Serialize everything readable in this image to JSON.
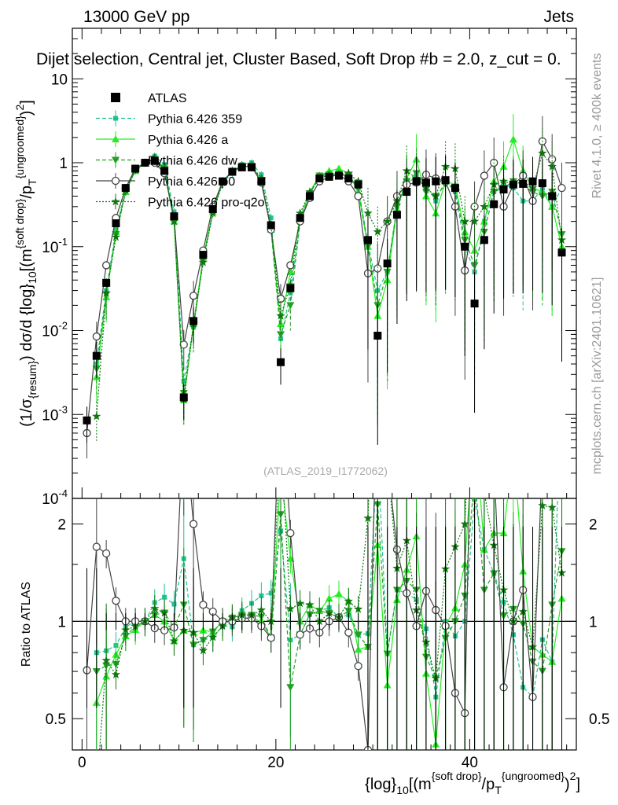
{
  "header": {
    "energy_label": "13000 GeV pp",
    "process_label": "Jets",
    "subtitle": "Dijet selection, Central jet, Cluster Based, Soft Drop #b = 2.0, z_cut = 0.",
    "watermark": "(ATLAS_2019_I1772062)",
    "right_label_top": "Rivet 4.1.0, ≥ 400k events",
    "right_label_bottom": "mcplots.cern.ch [arXiv:2401.10621]"
  },
  "axes": {
    "main_ylabel": "(1/σ_{resum}) dσ/d {log}_{10}[(m^{soft drop}/p_T^{ungroomed})^{2}]",
    "ratio_ylabel": "Ratio to ATLAS",
    "xlabel": "{log}_{10}[(m^{soft drop}/p_T^{ungroomed})^{2}]",
    "x_ticks": [
      "0",
      "20",
      "40"
    ],
    "main_y_ticks": [
      "10^-4",
      "10^-3",
      "10^-2",
      "10^-1",
      "1",
      "10"
    ],
    "ratio_y_ticks": [
      "0.5",
      "1",
      "2"
    ]
  },
  "legend": [
    {
      "name": "ATLAS",
      "color": "#000000",
      "marker": "square",
      "line": "none"
    },
    {
      "name": "Pythia 6.426 359",
      "color": "#1fc090",
      "marker": "square-small",
      "line": "dashed"
    },
    {
      "name": "Pythia 6.426 a",
      "color": "#22ee22",
      "marker": "triangle-up",
      "line": "solid"
    },
    {
      "name": "Pythia 6.426 dw",
      "color": "#22a022",
      "marker": "triangle-down",
      "line": "dashed"
    },
    {
      "name": "Pythia 6.426 p0",
      "color": "#444444",
      "marker": "open-circle",
      "line": "solid"
    },
    {
      "name": "Pythia 6.426 pro-q2o",
      "color": "#117711",
      "marker": "star",
      "line": "dotted"
    }
  ],
  "chart_data": {
    "type": "line",
    "title": "Dijet selection, Central jet, Cluster Based, Soft Drop #b = 2.0, z_cut = 0.",
    "xlabel": "{log}_{10}[(m^{soft drop}/p_T^{ungroomed})^{2}]",
    "ylabel": "(1/σ_{resum}) dσ/d {log}_{10}[(m^{soft drop}/p_T^{ungroomed})^{2}]",
    "ratio_ylabel": "Ratio to ATLAS",
    "xlim": [
      -1,
      51
    ],
    "ylim": [
      0.0001,
      40
    ],
    "ratio_ylim": [
      0.4,
      2.4
    ],
    "yscale": "log",
    "x": [
      0.5,
      1.5,
      2.5,
      3.5,
      4.5,
      5.5,
      6.5,
      7.5,
      8.5,
      9.5,
      10.5,
      11.5,
      12.5,
      13.5,
      14.5,
      15.5,
      16.5,
      17.5,
      18.5,
      19.5,
      20.5,
      21.5,
      22.5,
      23.5,
      24.5,
      25.5,
      26.5,
      27.5,
      28.5,
      29.5,
      30.5,
      31.5,
      32.5,
      33.5,
      34.5,
      35.5,
      36.5,
      37.5,
      38.5,
      39.5,
      40.5,
      41.5,
      42.5,
      43.5,
      44.5,
      45.5,
      46.5,
      47.5,
      48.5,
      49.5
    ],
    "series": [
      {
        "name": "ATLAS",
        "values": [
          0.00085,
          0.005,
          0.037,
          0.19,
          0.5,
          0.85,
          1.0,
          1.05,
          0.8,
          0.23,
          0.0016,
          0.013,
          0.08,
          0.28,
          0.6,
          0.78,
          0.88,
          0.88,
          0.6,
          0.18,
          0.0042,
          0.032,
          0.22,
          0.4,
          0.65,
          0.68,
          0.7,
          0.65,
          0.55,
          0.12,
          0.0087,
          0.063,
          0.24,
          0.45,
          0.6,
          0.58,
          0.6,
          0.62,
          0.5,
          0.1,
          0.021,
          0.12,
          0.32,
          0.48,
          0.55,
          0.56,
          0.6,
          0.57,
          0.4,
          0.085
        ]
      },
      {
        "name": "Pythia 6.426 359",
        "values": [
          null,
          0.004,
          0.03,
          0.16,
          0.48,
          0.85,
          1.0,
          1.2,
          0.95,
          0.26,
          0.0025,
          0.011,
          0.07,
          0.25,
          0.58,
          0.75,
          0.95,
          1.0,
          0.72,
          0.22,
          0.008,
          0.028,
          0.2,
          0.42,
          0.7,
          0.75,
          0.72,
          0.68,
          0.5,
          0.11,
          0.03,
          0.05,
          0.3,
          0.55,
          0.7,
          0.55,
          0.35,
          0.62,
          0.45,
          0.1,
          0.05,
          0.2,
          0.45,
          0.55,
          0.5,
          0.35,
          0.35,
          0.5,
          0.3,
          0.5
        ]
      },
      {
        "name": "Pythia 6.426 a",
        "values": [
          null,
          0.0028,
          0.025,
          0.15,
          0.45,
          0.8,
          1.0,
          1.1,
          0.8,
          0.2,
          0.0015,
          0.012,
          0.075,
          0.26,
          0.6,
          0.78,
          0.9,
          0.9,
          0.6,
          0.16,
          0.012,
          0.05,
          0.22,
          0.45,
          0.7,
          0.8,
          0.85,
          0.75,
          0.45,
          0.1,
          0.015,
          0.04,
          0.28,
          0.65,
          1.1,
          0.4,
          0.25,
          0.6,
          0.55,
          0.15,
          0.09,
          0.2,
          0.6,
          0.9,
          1.9,
          0.8,
          0.5,
          0.45,
          0.3,
          0.1
        ]
      },
      {
        "name": "Pythia 6.426 dw",
        "values": [
          null,
          0.0035,
          0.027,
          0.14,
          0.45,
          0.82,
          1.0,
          1.1,
          0.85,
          0.22,
          0.0018,
          0.011,
          0.07,
          0.26,
          0.6,
          0.8,
          0.92,
          0.92,
          0.62,
          0.16,
          0.009,
          0.02,
          0.2,
          0.42,
          0.7,
          0.72,
          0.72,
          0.7,
          0.5,
          0.1,
          0.02,
          0.05,
          0.3,
          0.6,
          0.75,
          0.45,
          0.4,
          0.55,
          0.5,
          0.12,
          0.06,
          0.15,
          0.45,
          0.5,
          0.6,
          0.55,
          0.45,
          0.4,
          0.45,
          0.14
        ]
      },
      {
        "name": "Pythia 6.426 p0",
        "values": [
          0.0006,
          0.0085,
          0.06,
          0.22,
          0.5,
          0.85,
          1.0,
          1.0,
          0.75,
          0.22,
          0.0068,
          0.026,
          0.09,
          0.3,
          0.6,
          0.78,
          0.9,
          0.9,
          0.58,
          0.16,
          0.024,
          0.06,
          0.2,
          0.38,
          0.6,
          0.68,
          0.72,
          0.6,
          0.4,
          0.048,
          0.055,
          0.2,
          0.4,
          0.55,
          0.58,
          0.72,
          0.65,
          0.6,
          0.3,
          0.052,
          0.3,
          0.7,
          1.0,
          0.3,
          0.55,
          0.7,
          0.35,
          1.8,
          1.1,
          0.5
        ]
      },
      {
        "name": "Pythia 6.426 pro-q2o",
        "values": [
          null,
          0.00095,
          0.028,
          0.13,
          0.47,
          0.82,
          1.0,
          1.15,
          0.85,
          0.2,
          0.0015,
          0.012,
          0.065,
          0.25,
          0.58,
          0.8,
          0.92,
          0.92,
          0.65,
          0.18,
          0.015,
          0.035,
          0.25,
          0.45,
          0.65,
          0.72,
          0.72,
          0.75,
          0.6,
          0.25,
          0.15,
          0.2,
          0.35,
          0.8,
          0.65,
          0.5,
          0.4,
          0.9,
          0.85,
          0.2,
          0.2,
          0.3,
          0.55,
          0.6,
          0.55,
          0.6,
          0.5,
          1.3,
          0.9,
          0.12
        ]
      }
    ]
  }
}
